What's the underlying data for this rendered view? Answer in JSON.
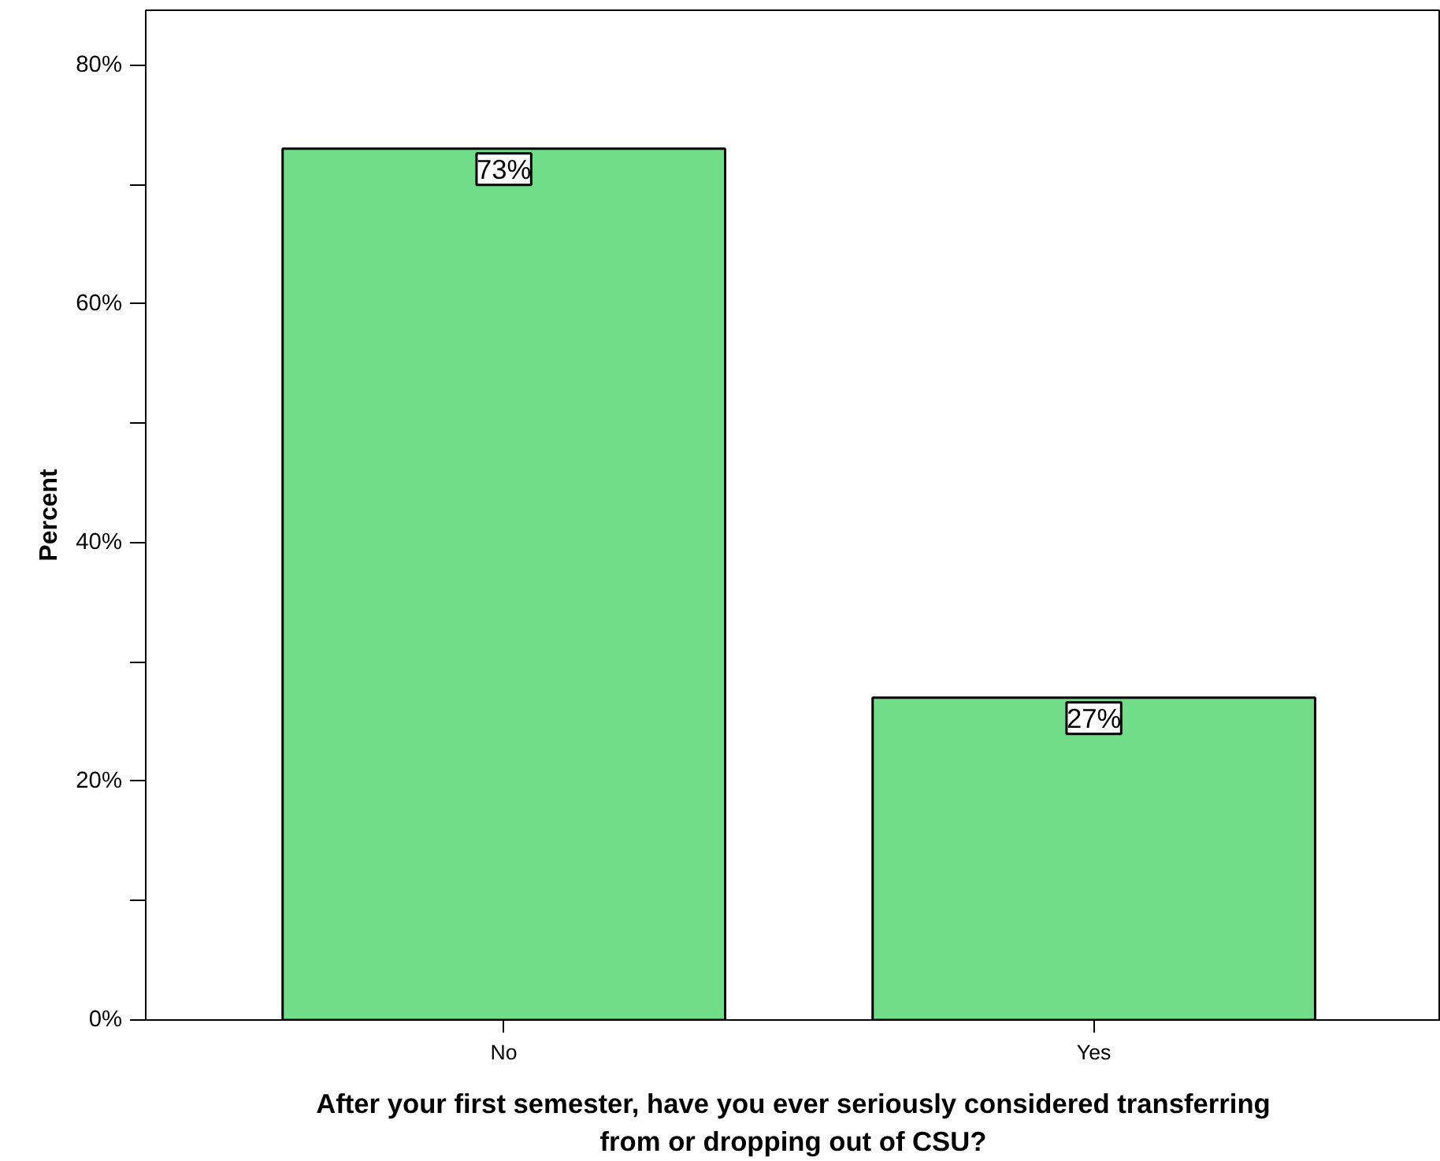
{
  "chart_data": {
    "type": "bar",
    "xlabel": "After your first semester, have you ever seriously considered transferring from or dropping out of CSU?",
    "ylabel": "Percent",
    "categories": [
      "No",
      "Yes"
    ],
    "values": [
      73,
      27
    ],
    "color": "#72dd88",
    "value_labels": [
      "73%",
      "27%"
    ],
    "ylim": [
      0,
      84.6
    ],
    "yticks": [
      {
        "value": 0,
        "label": "0%"
      },
      {
        "value": 10,
        "label": null
      },
      {
        "value": 20,
        "label": "20%"
      },
      {
        "value": 30,
        "label": null
      },
      {
        "value": 40,
        "label": "40%"
      },
      {
        "value": 50,
        "label": null
      },
      {
        "value": 60,
        "label": "60%"
      },
      {
        "value": 70,
        "label": null
      },
      {
        "value": 80,
        "label": "80%"
      }
    ],
    "grid": false
  }
}
